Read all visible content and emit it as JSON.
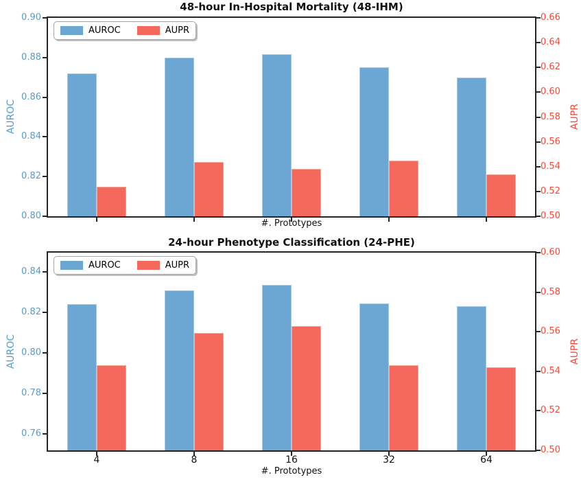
{
  "chart_data": [
    {
      "type": "bar",
      "title": "48-hour In-Hospital Mortality (48-IHM)",
      "xlabel": "#. Prototypes",
      "categories": [
        "4",
        "8",
        "16",
        "32",
        "64"
      ],
      "x_tick_labels_shown": false,
      "grid": false,
      "legend": {
        "position": "upper left",
        "entries": [
          "AUROC",
          "AUPR"
        ]
      },
      "series": [
        {
          "name": "AUROC",
          "axis": "left",
          "color": "#6CA6D2",
          "edge_color": "#A8CBE5",
          "values": [
            0.872,
            0.88,
            0.8815,
            0.875,
            0.87
          ]
        },
        {
          "name": "AUPR",
          "axis": "right",
          "color": "#F4695B",
          "edge_color": "#F8A795",
          "values": [
            0.524,
            0.544,
            0.538,
            0.545,
            0.534
          ]
        }
      ],
      "left_axis": {
        "label": "AUROC",
        "min": 0.8,
        "max": 0.9,
        "color": "#539DD3",
        "ticks": [
          0.8,
          0.82,
          0.84,
          0.86,
          0.88,
          0.9
        ],
        "tick_labels": [
          "0.80",
          "0.82",
          "0.84",
          "0.86",
          "0.88",
          "0.90"
        ]
      },
      "right_axis": {
        "label": "AUPR",
        "min": 0.5,
        "max": 0.66,
        "color": "#F44B38",
        "ticks": [
          0.5,
          0.52,
          0.54,
          0.56,
          0.58,
          0.6,
          0.62,
          0.64,
          0.66
        ],
        "tick_labels": [
          "0.50",
          "0.52",
          "0.54",
          "0.56",
          "0.58",
          "0.60",
          "0.62",
          "0.64",
          "0.66"
        ]
      }
    },
    {
      "type": "bar",
      "title": "24-hour Phenotype Classification (24-PHE)",
      "xlabel": "#. Prototypes",
      "categories": [
        "4",
        "8",
        "16",
        "32",
        "64"
      ],
      "x_tick_labels_shown": true,
      "grid": false,
      "legend": {
        "position": "upper left",
        "entries": [
          "AUROC",
          "AUPR"
        ]
      },
      "series": [
        {
          "name": "AUROC",
          "axis": "left",
          "color": "#6CA6D2",
          "edge_color": "#A8CBE5",
          "values": [
            0.824,
            0.831,
            0.8335,
            0.8243,
            0.823
          ]
        },
        {
          "name": "AUPR",
          "axis": "right",
          "color": "#F4695B",
          "edge_color": "#F8A795",
          "values": [
            0.543,
            0.5595,
            0.563,
            0.543,
            0.542
          ]
        }
      ],
      "left_axis": {
        "label": "AUROC",
        "min": 0.752,
        "max": 0.8495,
        "color": "#539DD3",
        "ticks": [
          0.76,
          0.78,
          0.8,
          0.82,
          0.84
        ],
        "tick_labels": [
          "0.76",
          "0.78",
          "0.80",
          "0.82",
          "0.84"
        ]
      },
      "right_axis": {
        "label": "AUPR",
        "min": 0.5,
        "max": 0.6,
        "color": "#F44B38",
        "ticks": [
          0.5,
          0.52,
          0.54,
          0.56,
          0.58,
          0.6
        ],
        "tick_labels": [
          "0.50",
          "0.52",
          "0.54",
          "0.56",
          "0.58",
          "0.60"
        ]
      }
    }
  ]
}
